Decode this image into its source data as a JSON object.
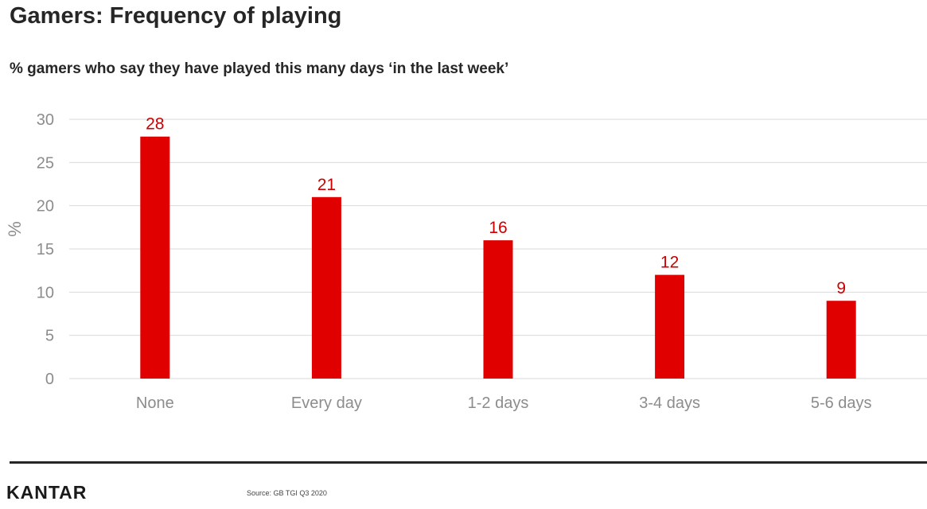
{
  "header": {
    "title": "Gamers: Frequency of playing",
    "subtitle": "% gamers who say they have played this many days ‘in the last week’"
  },
  "footer": {
    "logo_text": "KANTAR",
    "source": "Source: GB TGI Q3 2020"
  },
  "colors": {
    "bar": "#e00000",
    "data_label": "#cc0000",
    "gridline": "#d9d9d9",
    "axis_text": "#8c8c8c"
  },
  "chart_data": {
    "type": "bar",
    "title": "",
    "xlabel": "",
    "ylabel": "%",
    "categories": [
      "None",
      "Every day",
      "1-2 days",
      "3-4 days",
      "5-6 days"
    ],
    "values": [
      28,
      21,
      16,
      12,
      9
    ],
    "ylim": [
      0,
      30
    ],
    "yticks": [
      0,
      5,
      10,
      15,
      20,
      25,
      30
    ],
    "grid": true,
    "legend": "none",
    "data_labels": true
  }
}
